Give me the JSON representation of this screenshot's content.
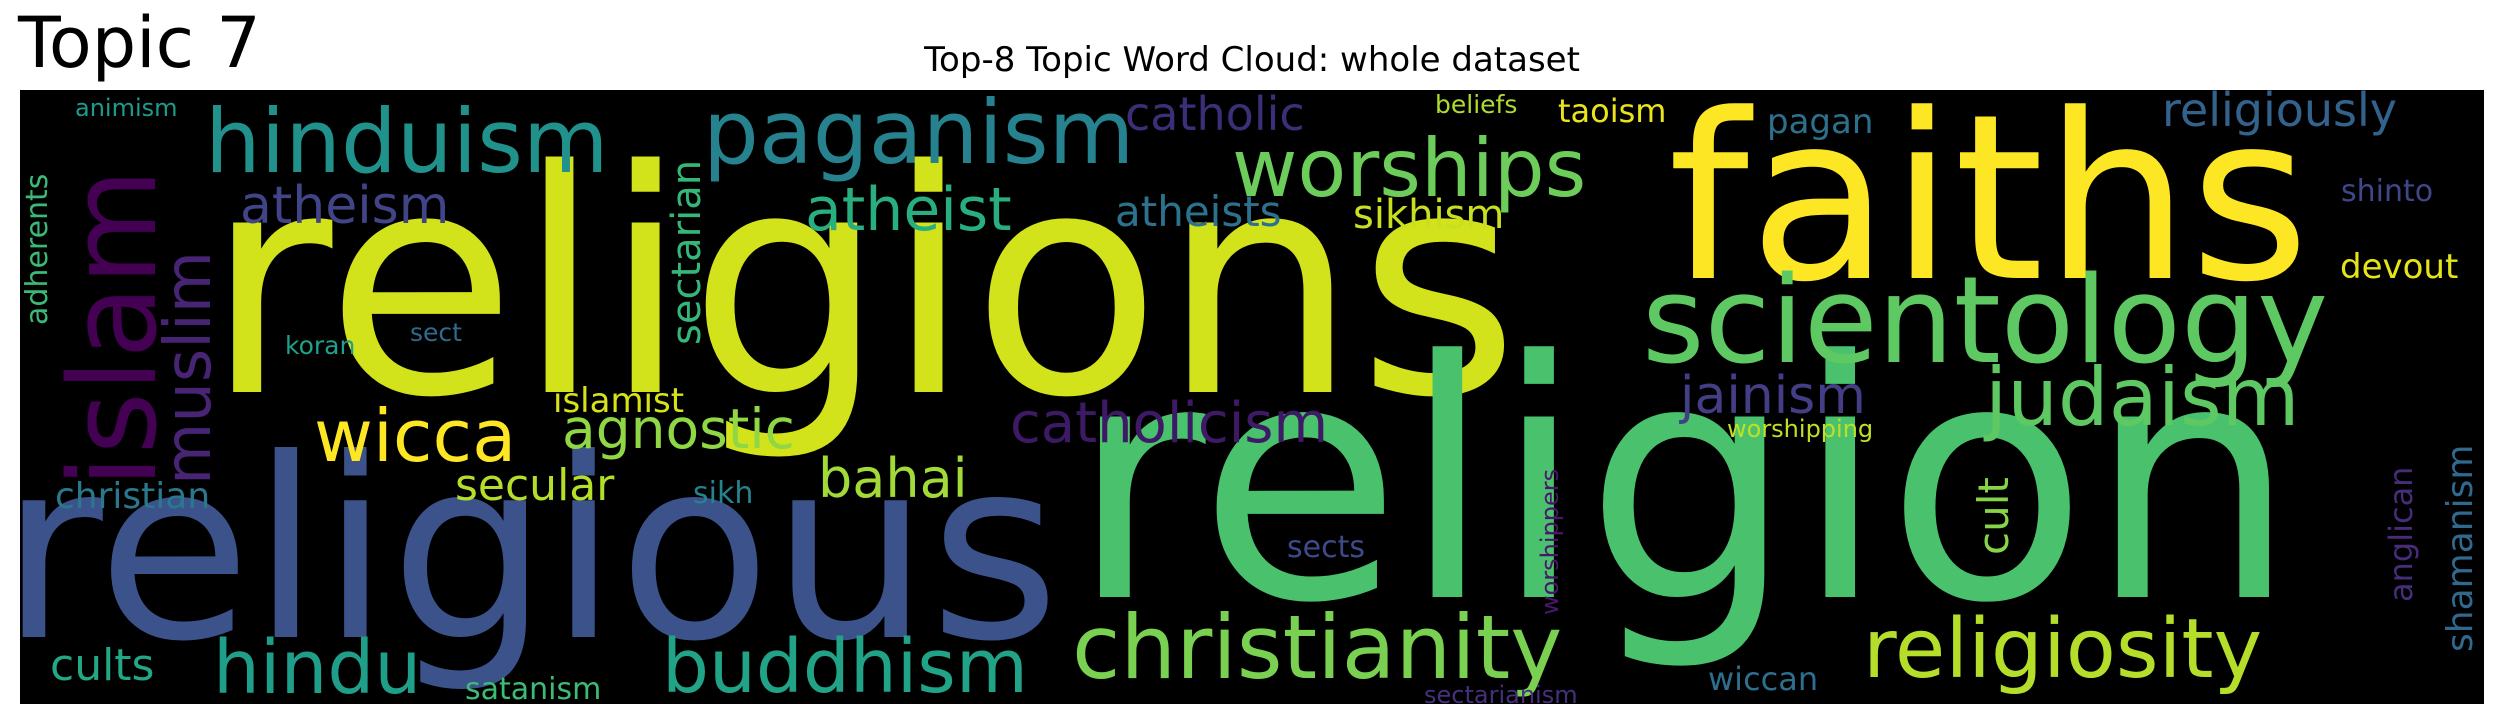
{
  "header": {
    "topic_label": "Topic 7"
  },
  "chart_data": {
    "type": "wordcloud",
    "title": "Top-8 Topic Word Cloud: whole dataset",
    "background": "#000000",
    "colormap": "viridis",
    "words": [
      {
        "text": "religions",
        "color": "#d2e21b"
      },
      {
        "text": "religion",
        "color": "#4ac16d"
      },
      {
        "text": "religious",
        "color": "#3b528b"
      },
      {
        "text": "faiths",
        "color": "#fde725"
      },
      {
        "text": "scientology",
        "color": "#5ec962"
      },
      {
        "text": "islam",
        "color": "#440154"
      },
      {
        "text": "hinduism",
        "color": "#21918c"
      },
      {
        "text": "paganism",
        "color": "#26828e"
      },
      {
        "text": "worships",
        "color": "#6ccd5a"
      },
      {
        "text": "christianity",
        "color": "#7ad151"
      },
      {
        "text": "religiosity",
        "color": "#b5de2b"
      },
      {
        "text": "judaism",
        "color": "#5ec962"
      },
      {
        "text": "buddhism",
        "color": "#20a386"
      },
      {
        "text": "hindu",
        "color": "#1f9e89"
      },
      {
        "text": "wicca",
        "color": "#fde725"
      },
      {
        "text": "muslim",
        "color": "#482475"
      },
      {
        "text": "catholicism",
        "color": "#3e1a66"
      },
      {
        "text": "agnostic",
        "color": "#8fd744"
      },
      {
        "text": "atheist",
        "color": "#29af7f"
      },
      {
        "text": "atheism",
        "color": "#414487"
      },
      {
        "text": "catholic",
        "color": "#3b2f7a"
      },
      {
        "text": "religiously",
        "color": "#33638d"
      },
      {
        "text": "bahai",
        "color": "#a2da37"
      },
      {
        "text": "jainism",
        "color": "#433e85"
      },
      {
        "text": "atheists",
        "color": "#2c728e"
      },
      {
        "text": "sikhism",
        "color": "#c8e020"
      },
      {
        "text": "secular",
        "color": "#b5de2b"
      },
      {
        "text": "sectarian",
        "color": "#35b779"
      },
      {
        "text": "cults",
        "color": "#22a884"
      },
      {
        "text": "christian",
        "color": "#2a788e"
      },
      {
        "text": "islamist",
        "color": "#d8e219"
      },
      {
        "text": "cult",
        "color": "#86d549"
      },
      {
        "text": "shamanism",
        "color": "#31688e"
      },
      {
        "text": "anglican",
        "color": "#472c7a"
      },
      {
        "text": "taoism",
        "color": "#eae51a"
      },
      {
        "text": "pagan",
        "color": "#2d708e"
      },
      {
        "text": "devout",
        "color": "#e5e419"
      },
      {
        "text": "shinto",
        "color": "#3f4788"
      },
      {
        "text": "sikh",
        "color": "#25838e"
      },
      {
        "text": "sects",
        "color": "#3e4a89"
      },
      {
        "text": "wiccan",
        "color": "#2e6e8e"
      },
      {
        "text": "satanism",
        "color": "#3dbc74"
      },
      {
        "text": "adherents",
        "color": "#3aba76"
      },
      {
        "text": "koran",
        "color": "#1fa088"
      },
      {
        "text": "sect",
        "color": "#2f6b8e"
      },
      {
        "text": "animism",
        "color": "#1e9b8a"
      },
      {
        "text": "beliefs",
        "color": "#addc30"
      },
      {
        "text": "worshipping",
        "color": "#c0df25"
      },
      {
        "text": "worshippers",
        "color": "#48186a"
      },
      {
        "text": "sectarianism",
        "color": "#46307e"
      }
    ]
  }
}
